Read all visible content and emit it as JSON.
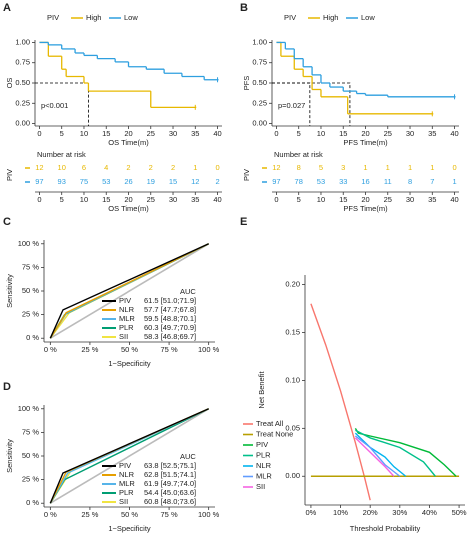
{
  "chart_data": [
    {
      "type": "step",
      "panel": "A",
      "legend_title": "PIV",
      "xlabel": "OS Time(m)",
      "ylabel": "OS",
      "annotation": "p<0.001",
      "xlim": [
        -1,
        41
      ],
      "ylim": [
        -0.03,
        1.03
      ],
      "xticks": [
        0,
        5,
        10,
        15,
        20,
        25,
        30,
        35,
        40
      ],
      "yticks": [
        {
          "value": 0,
          "label": "0.00"
        },
        {
          "value": 0.25,
          "label": "0.25"
        },
        {
          "value": 0.5,
          "label": "0.50"
        },
        {
          "value": 0.75,
          "label": "0.75"
        },
        {
          "value": 1,
          "label": "1.00"
        }
      ],
      "medians": [
        {
          "x": 11,
          "y": 0.5
        }
      ],
      "series": [
        {
          "name": "High",
          "color": "#E7B800",
          "x": [
            0,
            2,
            5,
            6,
            10,
            11,
            25,
            35
          ],
          "values": [
            1,
            0.83,
            0.67,
            0.58,
            0.5,
            0.4,
            0.2,
            0.2
          ]
        },
        {
          "name": "Low",
          "color": "#2E9FDF",
          "x": [
            0,
            2,
            5,
            8,
            10,
            13,
            17,
            20,
            24,
            28,
            32,
            37,
            40
          ],
          "values": [
            1,
            0.97,
            0.92,
            0.87,
            0.84,
            0.8,
            0.76,
            0.7,
            0.67,
            0.62,
            0.58,
            0.54,
            0.54
          ]
        }
      ]
    },
    {
      "type": "table",
      "title": "Number at risk",
      "xlabel": "OS Time(m)",
      "ylabel": "PIV",
      "xlim": [
        -1,
        41
      ],
      "xticks": [
        0,
        5,
        10,
        15,
        20,
        25,
        30,
        35,
        40
      ],
      "series": [
        {
          "color": "#E7B800",
          "values": [
            12,
            10,
            6,
            4,
            2,
            2,
            2,
            1,
            0
          ]
        },
        {
          "color": "#2E9FDF",
          "values": [
            97,
            93,
            75,
            53,
            26,
            19,
            15,
            12,
            2
          ]
        }
      ]
    },
    {
      "type": "step",
      "panel": "B",
      "legend_title": "PIV",
      "xlabel": "PFS Time(m)",
      "ylabel": "PFS",
      "annotation": "p=0.027",
      "xlim": [
        -1,
        41
      ],
      "ylim": [
        -0.03,
        1.03
      ],
      "xticks": [
        0,
        5,
        10,
        15,
        20,
        25,
        30,
        35,
        40
      ],
      "yticks": [
        {
          "value": 0,
          "label": "0.00"
        },
        {
          "value": 0.25,
          "label": "0.25"
        },
        {
          "value": 0.5,
          "label": "0.50"
        },
        {
          "value": 0.75,
          "label": "0.75"
        },
        {
          "value": 1,
          "label": "1.00"
        }
      ],
      "medians": [
        {
          "x": 7.5,
          "y": 0.5
        },
        {
          "x": 16.5,
          "y": 0.5
        }
      ],
      "series": [
        {
          "name": "High",
          "color": "#E7B800",
          "x": [
            0,
            1,
            4,
            6,
            8,
            10,
            16,
            35
          ],
          "values": [
            1,
            0.83,
            0.67,
            0.58,
            0.42,
            0.33,
            0.12,
            0.12
          ]
        },
        {
          "name": "Low",
          "color": "#2E9FDF",
          "x": [
            0,
            2,
            4,
            6,
            8,
            10,
            12,
            15,
            18,
            20,
            25,
            30,
            40
          ],
          "values": [
            1,
            0.92,
            0.8,
            0.7,
            0.6,
            0.5,
            0.45,
            0.4,
            0.37,
            0.35,
            0.33,
            0.33,
            0.33
          ]
        }
      ]
    },
    {
      "type": "table",
      "title": "Number at risk",
      "xlabel": "PFS Time(m)",
      "ylabel": "PIV",
      "xlim": [
        -1,
        41
      ],
      "xticks": [
        0,
        5,
        10,
        15,
        20,
        25,
        30,
        35,
        40
      ],
      "series": [
        {
          "color": "#E7B800",
          "values": [
            12,
            8,
            5,
            3,
            1,
            1,
            1,
            1,
            0
          ]
        },
        {
          "color": "#2E9FDF",
          "values": [
            97,
            78,
            53,
            33,
            16,
            11,
            8,
            7,
            1
          ]
        }
      ]
    },
    {
      "type": "roc",
      "panel": "C",
      "legend_title": "AUC",
      "xlabel": "1−Specificity",
      "ylabel": "Sensitivity",
      "xlim": [
        -4,
        104
      ],
      "ylim": [
        -4,
        104
      ],
      "xticks": [
        {
          "value": 0,
          "label": "0 %"
        },
        {
          "value": 25,
          "label": "25 %"
        },
        {
          "value": 50,
          "label": "50 %"
        },
        {
          "value": 75,
          "label": "75 %"
        },
        {
          "value": 100,
          "label": "100 %"
        }
      ],
      "yticks": [
        {
          "value": 0,
          "label": "0 %"
        },
        {
          "value": 25,
          "label": "25 %"
        },
        {
          "value": 50,
          "label": "50 %"
        },
        {
          "value": 75,
          "label": "75 %"
        },
        {
          "value": 100,
          "label": "100 %"
        }
      ],
      "series": [
        {
          "name": "PIV",
          "auc": "61.5 [51.0;71.9]",
          "color": "#000000",
          "x": [
            0,
            8,
            100
          ],
          "values": [
            0,
            30,
            100
          ]
        },
        {
          "name": "NLR",
          "auc": "57.7 [47.7;67.8]",
          "color": "#E69F00",
          "x": [
            0,
            10,
            100
          ],
          "values": [
            0,
            27,
            100
          ]
        },
        {
          "name": "MLR",
          "auc": "59.5 [48.8;70.1]",
          "color": "#56B4E9",
          "x": [
            0,
            10,
            100
          ],
          "values": [
            0,
            26,
            100
          ]
        },
        {
          "name": "PLR",
          "auc": "60.3 [49.7;70.9]",
          "color": "#009E73",
          "x": [
            0,
            9,
            100
          ],
          "values": [
            0,
            25,
            100
          ]
        },
        {
          "name": "SII",
          "auc": "58.3 [46.8;69.7]",
          "color": "#F0E442",
          "x": [
            0,
            12,
            100
          ],
          "values": [
            0,
            27,
            100
          ]
        }
      ]
    },
    {
      "type": "roc",
      "panel": "D",
      "legend_title": "AUC",
      "xlabel": "1−Specificity",
      "ylabel": "Sensitivity",
      "xlim": [
        -4,
        104
      ],
      "ylim": [
        -4,
        104
      ],
      "xticks": [
        {
          "value": 0,
          "label": "0 %"
        },
        {
          "value": 25,
          "label": "25 %"
        },
        {
          "value": 50,
          "label": "50 %"
        },
        {
          "value": 75,
          "label": "75 %"
        },
        {
          "value": 100,
          "label": "100 %"
        }
      ],
      "yticks": [
        {
          "value": 0,
          "label": "0 %"
        },
        {
          "value": 25,
          "label": "25 %"
        },
        {
          "value": 50,
          "label": "50 %"
        },
        {
          "value": 75,
          "label": "75 %"
        },
        {
          "value": 100,
          "label": "100 %"
        }
      ],
      "series": [
        {
          "name": "PIV",
          "auc": "63.8 [52.5;75.1]",
          "color": "#000000",
          "x": [
            0,
            8,
            100
          ],
          "values": [
            0,
            32,
            100
          ]
        },
        {
          "name": "NLR",
          "auc": "62.8 [51.5;74.1]",
          "color": "#E69F00",
          "x": [
            0,
            10,
            100
          ],
          "values": [
            0,
            33,
            100
          ]
        },
        {
          "name": "MLR",
          "auc": "61.9 [49.7;74.0]",
          "color": "#56B4E9",
          "x": [
            0,
            11,
            100
          ],
          "values": [
            0,
            32,
            100
          ]
        },
        {
          "name": "PLR",
          "auc": "54.4 [45.0;63.6]",
          "color": "#009E73",
          "x": [
            0,
            9,
            100
          ],
          "values": [
            0,
            25,
            100
          ]
        },
        {
          "name": "SII",
          "auc": "60.8 [48.0;73.6]",
          "color": "#F0E442",
          "x": [
            0,
            13,
            100
          ],
          "values": [
            0,
            34,
            100
          ]
        }
      ]
    },
    {
      "type": "line",
      "panel": "E",
      "xlabel": "Threshold Probability",
      "ylabel": "Net Benefit",
      "xlim": [
        -2,
        52
      ],
      "ylim": [
        -0.03,
        0.21
      ],
      "xticks": [
        {
          "value": 0,
          "label": "0%"
        },
        {
          "value": 10,
          "label": "10%"
        },
        {
          "value": 20,
          "label": "20%"
        },
        {
          "value": 30,
          "label": "30%"
        },
        {
          "value": 40,
          "label": "40%"
        },
        {
          "value": 50,
          "label": "50%"
        }
      ],
      "yticks": [
        {
          "value": 0,
          "label": "0.00"
        },
        {
          "value": 0.05,
          "label": "0.05"
        },
        {
          "value": 0.1,
          "label": "0.10"
        },
        {
          "value": 0.15,
          "label": "0.15"
        },
        {
          "value": 0.2,
          "label": "0.20"
        }
      ],
      "series": [
        {
          "name": "Treat All",
          "color": "#F8766D",
          "x": [
            0,
            5,
            10,
            15,
            18,
            20
          ],
          "values": [
            0.18,
            0.137,
            0.089,
            0.035,
            0,
            -0.025
          ]
        },
        {
          "name": "Treat None",
          "color": "#B79F00",
          "x": [
            0,
            50
          ],
          "values": [
            0,
            0
          ]
        },
        {
          "name": "PIV",
          "color": "#00BA38",
          "x": [
            15,
            16,
            20,
            30,
            40,
            45,
            49
          ],
          "values": [
            0.05,
            0.045,
            0.042,
            0.035,
            0.025,
            0.012,
            0
          ]
        },
        {
          "name": "PLR",
          "color": "#00C08B",
          "x": [
            15,
            20,
            30,
            38,
            42
          ],
          "values": [
            0.048,
            0.04,
            0.03,
            0.015,
            0
          ]
        },
        {
          "name": "NLR",
          "color": "#00B4EF",
          "x": [
            15,
            20,
            25,
            28,
            32
          ],
          "values": [
            0.045,
            0.03,
            0.02,
            0.01,
            0
          ]
        },
        {
          "name": "MLR",
          "color": "#619CFF",
          "x": [
            15,
            20,
            25,
            30
          ],
          "values": [
            0.042,
            0.03,
            0.012,
            0
          ]
        },
        {
          "name": "SII",
          "color": "#F564E3",
          "x": [
            15,
            20,
            25,
            28
          ],
          "values": [
            0.04,
            0.025,
            0.01,
            0
          ]
        }
      ]
    }
  ]
}
